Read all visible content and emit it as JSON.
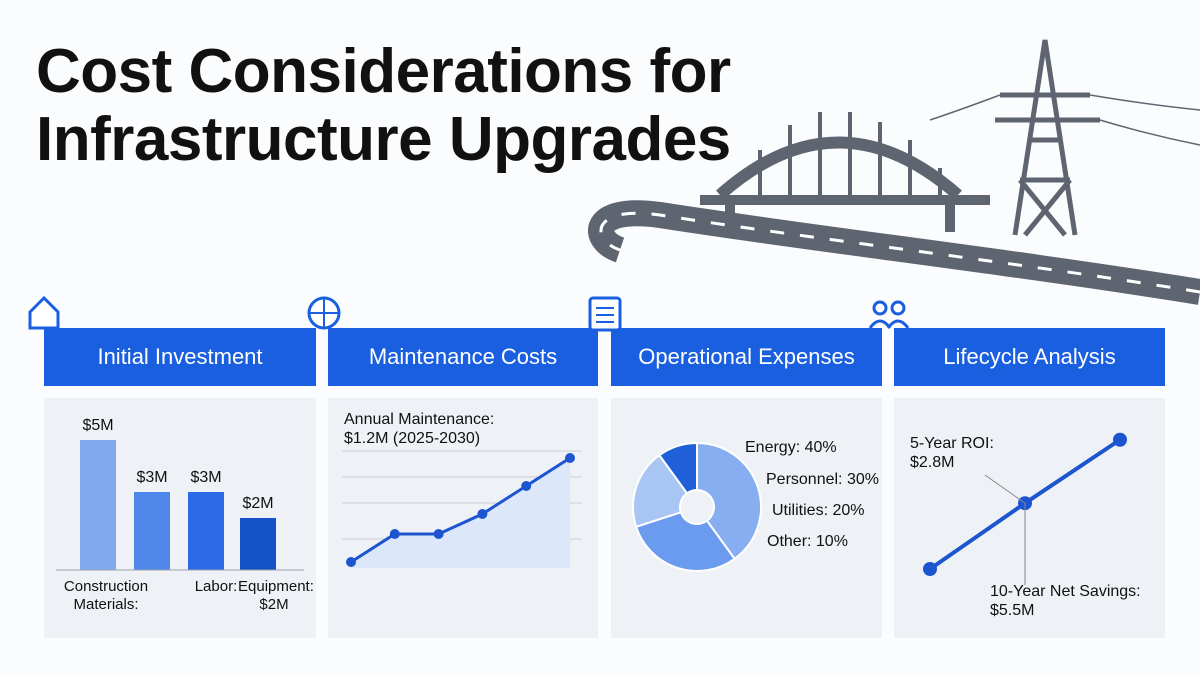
{
  "title": "Cost Considerations for Infrastructure Upgrades",
  "panels": [
    {
      "header": "Initial Investment"
    },
    {
      "header": "Maintenance Costs"
    },
    {
      "header": "Operational Expenses"
    },
    {
      "header": "Lifecycle Analysis"
    }
  ],
  "chart_data": [
    {
      "type": "bar",
      "categories": [
        "Construction Materials:",
        null,
        "Labor:",
        "Equipment: $2M"
      ],
      "values": [
        5,
        3,
        3,
        2
      ],
      "value_labels": [
        "$5M",
        "$3M",
        "$3M",
        "$2M"
      ],
      "colors": [
        "#80a9ee",
        "#4f86ea",
        "#2a6ae6",
        "#1452c8"
      ]
    },
    {
      "type": "line",
      "annotation": "Annual Maintenance: $1.2M (2025-2030)",
      "values": [
        0.5,
        1.2,
        1.2,
        1.7,
        2.4,
        3.1
      ],
      "color": "#1d55d0",
      "area_color": "#dce7f9"
    },
    {
      "type": "pie",
      "values": [
        40,
        30,
        20,
        10
      ],
      "value_labels": [
        "Energy: 40%",
        "Personnel: 30%",
        "Utilities: 20%",
        "Other: 10%"
      ],
      "colors": [
        "#86aef0",
        "#6b9bee",
        "#a9c5f4",
        "#1f5fd8"
      ]
    },
    {
      "type": "line",
      "annotations": [
        "5-Year ROI: $2.8M",
        "10-Year Net Savings: $5.5M"
      ],
      "values": [
        0,
        2.8,
        5.5
      ],
      "color": "#1d55d0"
    }
  ]
}
